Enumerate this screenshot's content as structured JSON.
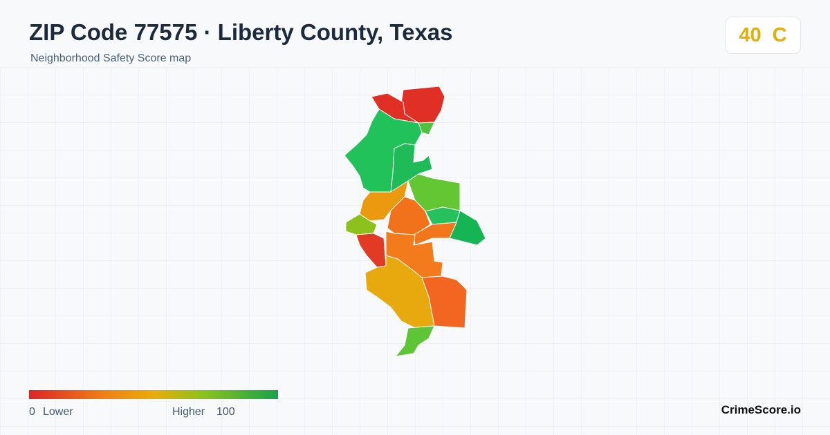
{
  "header": {
    "title": "ZIP Code 77575 · Liberty County, Texas",
    "subtitle": "Neighborhood Safety Score map"
  },
  "score": {
    "value": "40",
    "grade": "C"
  },
  "legend": {
    "min": "0",
    "low_label": "Lower",
    "high_label": "Higher",
    "max": "100"
  },
  "brand": "CrimeScore.io"
}
